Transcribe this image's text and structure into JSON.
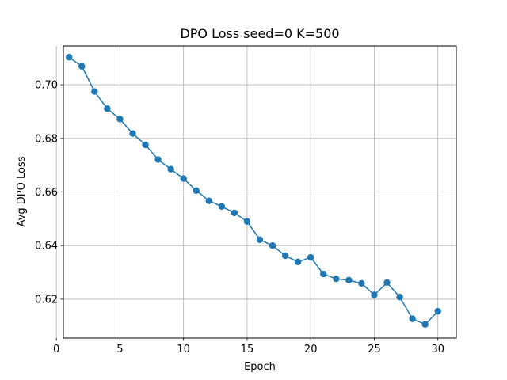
{
  "chart_data": {
    "type": "line",
    "title": "DPO Loss seed=0 K=500",
    "xlabel": "Epoch",
    "ylabel": "Avg DPO Loss",
    "xlim": [
      0.55,
      31.45
    ],
    "ylim": [
      0.6055,
      0.7145
    ],
    "xticks": [
      0,
      5,
      10,
      15,
      20,
      25,
      30
    ],
    "yticks": [
      0.62,
      0.64,
      0.66,
      0.68,
      0.7
    ],
    "ytick_labels": [
      "0.62",
      "0.64",
      "0.66",
      "0.68",
      "0.70"
    ],
    "grid": true,
    "color": "#1f77b4",
    "series": [
      {
        "x": [
          1,
          2,
          3,
          4,
          5,
          6,
          7,
          8,
          9,
          10,
          11,
          12,
          13,
          14,
          15,
          16,
          17,
          18,
          19,
          20,
          21,
          22,
          23,
          24,
          25,
          26,
          27,
          28,
          29,
          30
        ],
        "y": [
          0.7103,
          0.7069,
          0.6975,
          0.6911,
          0.6872,
          0.6818,
          0.6776,
          0.6721,
          0.6685,
          0.665,
          0.6605,
          0.6567,
          0.6546,
          0.6522,
          0.649,
          0.6422,
          0.64,
          0.6362,
          0.6339,
          0.6356,
          0.6294,
          0.6276,
          0.6271,
          0.6259,
          0.6216,
          0.6262,
          0.6208,
          0.6127,
          0.6106,
          0.6155
        ]
      }
    ]
  }
}
